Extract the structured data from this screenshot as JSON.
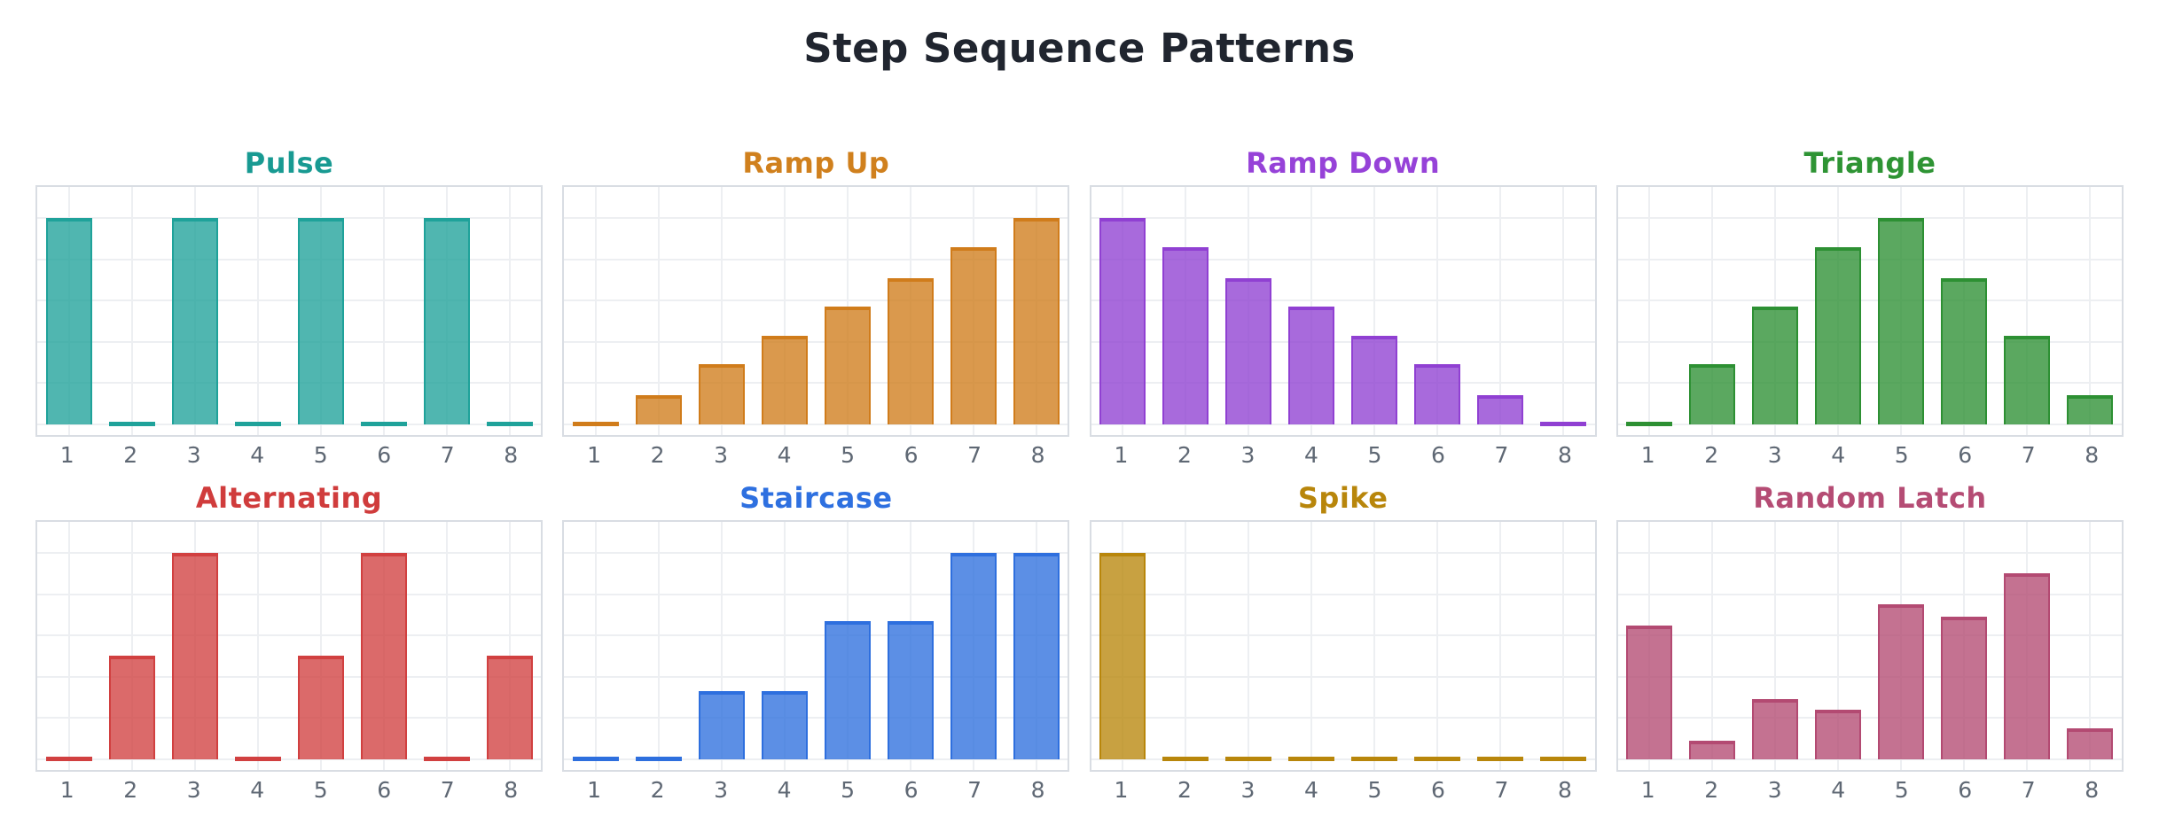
{
  "page": {
    "title": "Step Sequence Patterns"
  },
  "style": {
    "background": "#ffffff",
    "plot_background": "#ffffff",
    "panel_border_color": "#d9dde3",
    "grid_color": "#edeff2",
    "tick_label_color": "#5f6874",
    "main_title_color": "#20252f"
  },
  "chart_data": [
    {
      "type": "bar",
      "title": "Pulse",
      "title_color": "#189a92",
      "bar_edge": "#1fa29a",
      "bar_fill": "rgba(31,162,154,0.78)",
      "categories": [
        "1",
        "2",
        "3",
        "4",
        "5",
        "6",
        "7",
        "8"
      ],
      "values": [
        1,
        0,
        1,
        0,
        1,
        0,
        1,
        0
      ],
      "xlabel": "",
      "ylabel": "",
      "ylim": [
        -0.05,
        1.15
      ],
      "grid": true,
      "legend": "none"
    },
    {
      "type": "bar",
      "title": "Ramp Up",
      "title_color": "#d0801d",
      "bar_edge": "#d07c1b",
      "bar_fill": "rgba(208,124,27,0.78)",
      "categories": [
        "1",
        "2",
        "3",
        "4",
        "5",
        "6",
        "7",
        "8"
      ],
      "values": [
        0,
        0.14,
        0.29,
        0.43,
        0.57,
        0.71,
        0.86,
        1.0
      ],
      "xlabel": "",
      "ylabel": "",
      "ylim": [
        -0.05,
        1.15
      ],
      "grid": true,
      "legend": "none"
    },
    {
      "type": "bar",
      "title": "Ramp Down",
      "title_color": "#9642d8",
      "bar_edge": "#9040d2",
      "bar_fill": "rgba(144,64,210,0.78)",
      "categories": [
        "1",
        "2",
        "3",
        "4",
        "5",
        "6",
        "7",
        "8"
      ],
      "values": [
        1.0,
        0.86,
        0.71,
        0.57,
        0.43,
        0.29,
        0.14,
        0
      ],
      "xlabel": "",
      "ylabel": "",
      "ylim": [
        -0.05,
        1.15
      ],
      "grid": true,
      "legend": "none"
    },
    {
      "type": "bar",
      "title": "Triangle",
      "title_color": "#2e9434",
      "bar_edge": "#2d9033",
      "bar_fill": "rgba(45,144,51,0.78)",
      "categories": [
        "1",
        "2",
        "3",
        "4",
        "5",
        "6",
        "7",
        "8"
      ],
      "values": [
        0,
        0.29,
        0.57,
        0.86,
        1.0,
        0.71,
        0.43,
        0.14
      ],
      "xlabel": "",
      "ylabel": "",
      "ylim": [
        -0.05,
        1.15
      ],
      "grid": true,
      "legend": "none"
    },
    {
      "type": "bar",
      "title": "Alternating",
      "title_color": "#d03c3c",
      "bar_edge": "#d14040",
      "bar_fill": "rgba(209,64,64,0.78)",
      "categories": [
        "1",
        "2",
        "3",
        "4",
        "5",
        "6",
        "7",
        "8"
      ],
      "values": [
        0,
        0.5,
        1.0,
        0,
        0.5,
        1.0,
        0,
        0.5
      ],
      "xlabel": "",
      "ylabel": "",
      "ylim": [
        -0.05,
        1.15
      ],
      "grid": true,
      "legend": "none"
    },
    {
      "type": "bar",
      "title": "Staircase",
      "title_color": "#2e70e0",
      "bar_edge": "#2e6fde",
      "bar_fill": "rgba(46,111,222,0.78)",
      "categories": [
        "1",
        "2",
        "3",
        "4",
        "5",
        "6",
        "7",
        "8"
      ],
      "values": [
        0,
        0,
        0.33,
        0.33,
        0.67,
        0.67,
        1.0,
        1.0
      ],
      "xlabel": "",
      "ylabel": "",
      "ylim": [
        -0.05,
        1.15
      ],
      "grid": true,
      "legend": "none"
    },
    {
      "type": "bar",
      "title": "Spike",
      "title_color": "#b8860b",
      "bar_edge": "#b8860b",
      "bar_fill": "rgba(184,134,11,0.78)",
      "categories": [
        "1",
        "2",
        "3",
        "4",
        "5",
        "6",
        "7",
        "8"
      ],
      "values": [
        1.0,
        0,
        0,
        0,
        0,
        0,
        0,
        0
      ],
      "xlabel": "",
      "ylabel": "",
      "ylim": [
        -0.05,
        1.15
      ],
      "grid": true,
      "legend": "none"
    },
    {
      "type": "bar",
      "title": "Random Latch",
      "title_color": "#b54c74",
      "bar_edge": "#b34a72",
      "bar_fill": "rgba(179,74,114,0.78)",
      "categories": [
        "1",
        "2",
        "3",
        "4",
        "5",
        "6",
        "7",
        "8"
      ],
      "values": [
        0.65,
        0.09,
        0.29,
        0.24,
        0.75,
        0.69,
        0.9,
        0.15
      ],
      "xlabel": "",
      "ylabel": "",
      "ylim": [
        -0.05,
        1.15
      ],
      "grid": true,
      "legend": "none"
    }
  ]
}
